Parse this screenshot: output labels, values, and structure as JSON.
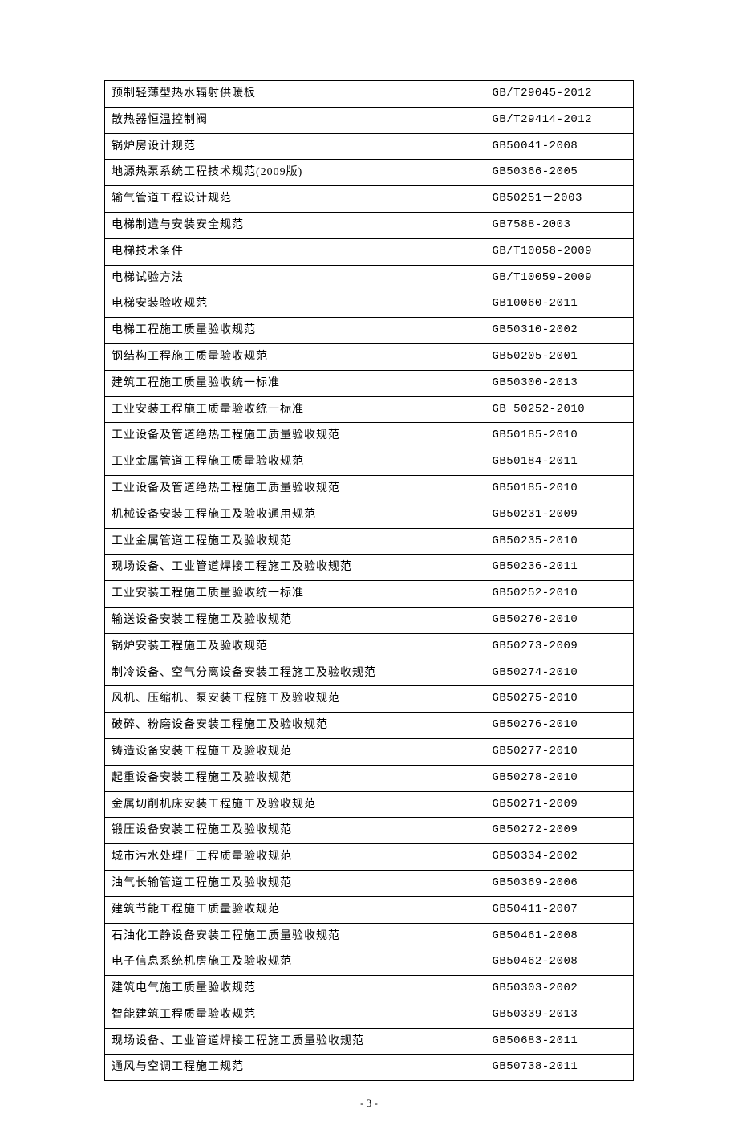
{
  "table": {
    "rows": [
      [
        "预制轻薄型热水辐射供暖板",
        "GB/T29045-2012"
      ],
      [
        "散热器恒温控制阀",
        "GB/T29414-2012"
      ],
      [
        "锅炉房设计规范",
        "GB50041-2008"
      ],
      [
        "地源热泵系统工程技术规范(2009版)",
        "GB50366-2005"
      ],
      [
        "输气管道工程设计规范",
        "GB50251－2003"
      ],
      [
        "电梯制造与安装安全规范",
        "GB7588-2003"
      ],
      [
        "电梯技术条件",
        "GB/T10058-2009"
      ],
      [
        "电梯试验方法",
        "GB/T10059-2009"
      ],
      [
        "电梯安装验收规范",
        "GB10060-2011"
      ],
      [
        "电梯工程施工质量验收规范",
        "GB50310-2002"
      ],
      [
        "钢结构工程施工质量验收规范",
        "GB50205-2001"
      ],
      [
        "建筑工程施工质量验收统一标准",
        "GB50300-2013"
      ],
      [
        "工业安装工程施工质量验收统一标准",
        "GB 50252-2010"
      ],
      [
        "工业设备及管道绝热工程施工质量验收规范",
        "GB50185-2010"
      ],
      [
        "工业金属管道工程施工质量验收规范",
        "GB50184-2011"
      ],
      [
        "工业设备及管道绝热工程施工质量验收规范",
        "GB50185-2010"
      ],
      [
        "机械设备安装工程施工及验收通用规范",
        "GB50231-2009"
      ],
      [
        "工业金属管道工程施工及验收规范",
        "GB50235-2010"
      ],
      [
        "现场设备、工业管道焊接工程施工及验收规范",
        "GB50236-2011"
      ],
      [
        "工业安装工程施工质量验收统一标准",
        "GB50252-2010"
      ],
      [
        "输送设备安装工程施工及验收规范",
        "GB50270-2010"
      ],
      [
        "锅炉安装工程施工及验收规范",
        "GB50273-2009"
      ],
      [
        "制冷设备、空气分离设备安装工程施工及验收规范",
        "GB50274-2010"
      ],
      [
        "风机、压缩机、泵安装工程施工及验收规范",
        "GB50275-2010"
      ],
      [
        "破碎、粉磨设备安装工程施工及验收规范",
        "GB50276-2010"
      ],
      [
        "铸造设备安装工程施工及验收规范",
        "GB50277-2010"
      ],
      [
        "起重设备安装工程施工及验收规范",
        "GB50278-2010"
      ],
      [
        "金属切削机床安装工程施工及验收规范",
        "GB50271-2009"
      ],
      [
        "锻压设备安装工程施工及验收规范",
        "GB50272-2009"
      ],
      [
        "城市污水处理厂工程质量验收规范",
        "GB50334-2002"
      ],
      [
        "油气长输管道工程施工及验收规范",
        "GB50369-2006"
      ],
      [
        "建筑节能工程施工质量验收规范",
        "GB50411-2007"
      ],
      [
        "石油化工静设备安装工程施工质量验收规范",
        "GB50461-2008"
      ],
      [
        "电子信息系统机房施工及验收规范",
        "GB50462-2008"
      ],
      [
        "建筑电气施工质量验收规范",
        "GB50303-2002"
      ],
      [
        "智能建筑工程质量验收规范",
        "GB50339-2013"
      ],
      [
        "现场设备、工业管道焊接工程施工质量验收规范",
        "GB50683-2011"
      ],
      [
        "通风与空调工程施工规范",
        "GB50738-2011"
      ]
    ]
  },
  "page_number": "- 3 -",
  "colors": {
    "border": "#000000",
    "background": "#ffffff",
    "text": "#000000"
  },
  "typography": {
    "body_fontsize": 14,
    "page_number_fontsize": 13
  }
}
